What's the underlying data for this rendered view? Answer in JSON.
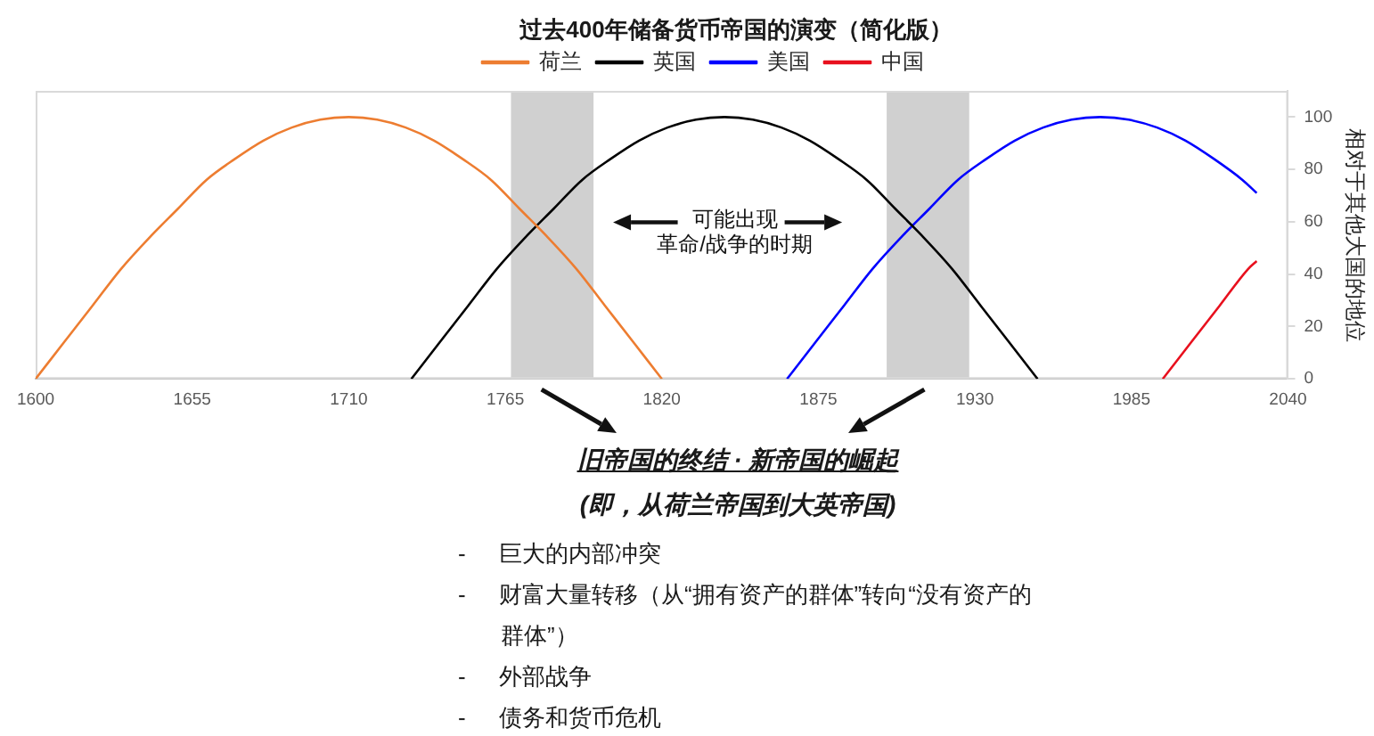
{
  "chart_data": {
    "type": "line",
    "title": "过去400年储备货币帝国的演变（简化版）",
    "ylabel": "相对于其他大国的地位",
    "xlim": [
      1600,
      2040
    ],
    "xticks": [
      1600,
      1655,
      1710,
      1765,
      1820,
      1875,
      1930,
      1985,
      2040
    ],
    "ylim": [
      0,
      110
    ],
    "yticks": [
      0,
      20,
      40,
      60,
      80,
      100
    ],
    "series": [
      {
        "name": "荷兰",
        "color": "#ed7d31",
        "x": [
          1600,
          1610,
          1620,
          1630,
          1640,
          1650,
          1660,
          1670,
          1680,
          1690,
          1700,
          1710,
          1720,
          1730,
          1740,
          1750,
          1760,
          1770,
          1780,
          1790,
          1800,
          1810,
          1820
        ],
        "values": [
          0,
          14,
          28,
          42,
          54,
          65,
          76,
          84,
          91,
          96,
          99,
          100,
          99,
          96,
          91,
          84,
          76,
          65,
          54,
          42,
          28,
          14,
          0
        ]
      },
      {
        "name": "英国",
        "color": "#000000",
        "x": [
          1732,
          1742,
          1752,
          1762,
          1772,
          1782,
          1792,
          1802,
          1812,
          1822,
          1832,
          1842,
          1852,
          1862,
          1872,
          1882,
          1892,
          1902,
          1912,
          1922,
          1932,
          1942,
          1952
        ],
        "values": [
          0,
          14,
          28,
          42,
          54,
          65,
          76,
          84,
          91,
          96,
          99,
          100,
          99,
          96,
          91,
          84,
          76,
          65,
          54,
          42,
          28,
          14,
          0
        ]
      },
      {
        "name": "美国",
        "color": "#0000ff",
        "x": [
          1864,
          1874,
          1884,
          1894,
          1904,
          1914,
          1924,
          1934,
          1944,
          1954,
          1964,
          1974,
          1984,
          1994,
          2004,
          2014,
          2024,
          2029
        ],
        "values": [
          0,
          14,
          28,
          42,
          54,
          65,
          76,
          84,
          91,
          96,
          99,
          100,
          99,
          96,
          91,
          84,
          76,
          71
        ]
      },
      {
        "name": "中国",
        "color": "#e8101e",
        "x": [
          1996,
          2006,
          2016,
          2026,
          2029
        ],
        "values": [
          0,
          14,
          28,
          42,
          45
        ]
      }
    ],
    "bands": [
      {
        "axis": "x",
        "from": 1767,
        "to": 1796,
        "color": "#d0d0d0"
      },
      {
        "axis": "x",
        "from": 1899,
        "to": 1928,
        "color": "#d0d0d0"
      }
    ],
    "annotations": [
      "可能出现",
      "革命/战争的时期",
      "旧帝国的终结 · 新帝国的崛起",
      "(即，从荷兰帝国到大英帝国)",
      "- 巨大的内部冲突",
      "- 财富大量转移（从“拥有资产的群体”转向“没有资产的群体”）",
      "- 外部战争",
      "- 债务和货币危机"
    ],
    "legend": "top",
    "grid": false
  }
}
